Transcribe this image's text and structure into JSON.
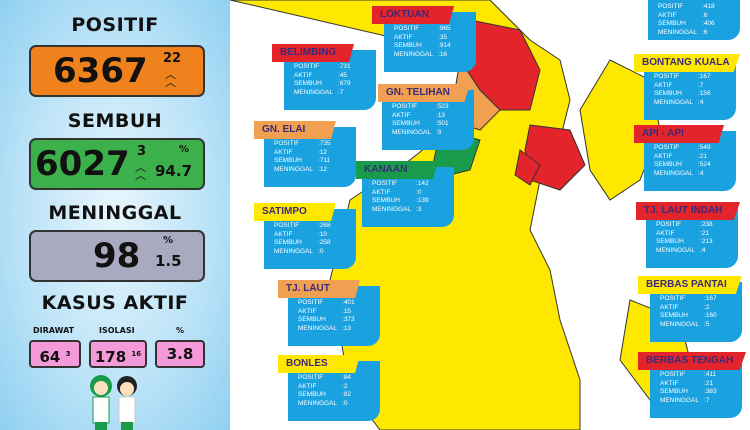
{
  "summary": {
    "positif": {
      "label": "POSITIF",
      "value": "6367",
      "increase": "22"
    },
    "sembuh": {
      "label": "SEMBUH",
      "value": "6027",
      "increase": "3",
      "percent_sign": "%",
      "percent": "94.7"
    },
    "meninggal": {
      "label": "MENINGGAL",
      "value": "98",
      "percent_sign": "%",
      "percent": "1.5"
    },
    "kasus_aktif": {
      "label": "KASUS AKTIF",
      "dirawat_label": "DIRAWAT",
      "dirawat": "64",
      "dirawat_increase": "3",
      "isolasi_label": "ISOLASI",
      "isolasi": "178",
      "isolasi_increase": "16",
      "percent_label": "%",
      "percent": "3.8"
    },
    "colors": {
      "positif": "#f0821e",
      "sembuh": "#3cb04a",
      "meninggal": "#a9a9c0",
      "aktif": "#f59ad9"
    }
  },
  "field_labels": {
    "positif": "POSITIF",
    "aktif": "AKTIF",
    "sembuh": "SEMBUH",
    "meninggal": "MENINGGAL"
  },
  "regions": [
    {
      "name": "",
      "positif": "418",
      "aktif": "6",
      "sembuh": "406",
      "meninggal": "6",
      "color": "#ffffff"
    },
    {
      "name": "LOKTUAN",
      "positif": "965",
      "aktif": "35",
      "sembuh": "914",
      "meninggal": "16",
      "color": "#e3242b"
    },
    {
      "name": "BELIMBING",
      "positif": "731",
      "aktif": "45",
      "sembuh": "679",
      "meninggal": "7",
      "color": "#e3242b"
    },
    {
      "name": "GN. TELIHAN",
      "positif": "523",
      "aktif": "13",
      "sembuh": "501",
      "meninggal": "9",
      "color": "#f0a050"
    },
    {
      "name": "GN. ELAI",
      "positif": "735",
      "aktif": "12",
      "sembuh": "711",
      "meninggal": "12",
      "color": "#f0a050"
    },
    {
      "name": "KANAAN",
      "positif": "142",
      "aktif": "0",
      "sembuh": "139",
      "meninggal": "3",
      "color": "#1a9b4b"
    },
    {
      "name": "SATIMPO",
      "positif": "268",
      "aktif": "10",
      "sembuh": "258",
      "meninggal": "0",
      "color": "#ffe800"
    },
    {
      "name": "TJ. LAUT",
      "positif": "401",
      "aktif": "15",
      "sembuh": "373",
      "meninggal": "13",
      "color": "#f0a050"
    },
    {
      "name": "BONLES",
      "positif": "84",
      "aktif": "2",
      "sembuh": "82",
      "meninggal": "0",
      "color": "#ffe800"
    },
    {
      "name": "BONTANG KUALA",
      "positif": "167",
      "aktif": "7",
      "sembuh": "156",
      "meninggal": "4",
      "color": "#ffe800"
    },
    {
      "name": "API - API",
      "positif": "549",
      "aktif": "21",
      "sembuh": "524",
      "meninggal": "4",
      "color": "#e3242b"
    },
    {
      "name": "TJ. LAUT INDAH",
      "positif": "238",
      "aktif": "21",
      "sembuh": "213",
      "meninggal": "4",
      "color": "#e3242b"
    },
    {
      "name": "BERBAS PANTAI",
      "positif": "167",
      "aktif": "2",
      "sembuh": "160",
      "meninggal": "5",
      "color": "#ffe800"
    },
    {
      "name": "BERBAS TENGAH",
      "positif": "411",
      "aktif": "21",
      "sembuh": "383",
      "meninggal": "7",
      "color": "#e3242b"
    }
  ]
}
